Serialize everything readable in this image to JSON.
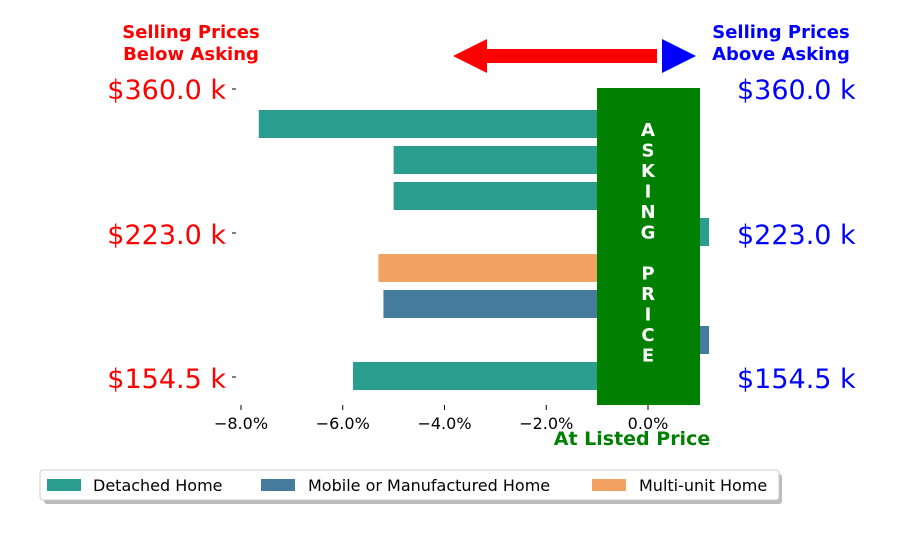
{
  "header": {
    "left_label_line1": "Selling Prices",
    "left_label_line2": "Below Asking",
    "right_label_line1": "Selling Prices",
    "right_label_line2": "Above Asking"
  },
  "asking_band": {
    "letters": [
      "A",
      "S",
      "K",
      "I",
      "N",
      "G",
      "",
      "P",
      "R",
      "I",
      "C",
      "E"
    ],
    "color": "#008000"
  },
  "price_labels": [
    "$360.0 k",
    "$223.0 k",
    "$154.5 k"
  ],
  "colors": {
    "left_price": "#ff0000",
    "right_price": "#0000ff",
    "left_arrow": "#ff0000",
    "right_arrow": "#0000ff",
    "listed_label": "#008000"
  },
  "chart_data": {
    "type": "bar",
    "orientation": "horizontal",
    "xlabel": "At Listed Price",
    "xlim": [
      -8.2,
      1.2
    ],
    "xticks": [
      -8,
      -6,
      -4,
      -2,
      0
    ],
    "xtick_labels": [
      "−8.0%",
      "−6.0%",
      "−4.0%",
      "−2.0%",
      "0.0%"
    ],
    "bars": [
      {
        "series": "Detached Home",
        "value": -7.65
      },
      {
        "series": "Detached Home",
        "value": -5.0
      },
      {
        "series": "Detached Home",
        "value": -5.0
      },
      {
        "series": "Detached Home",
        "value": 1.2
      },
      {
        "series": "Multi-unit Home",
        "value": -5.3
      },
      {
        "series": "Mobile or Manufactured Home",
        "value": -5.2
      },
      {
        "series": "Mobile or Manufactured Home",
        "value": 1.2
      },
      {
        "series": "Detached Home",
        "value": -5.8
      }
    ],
    "series": [
      {
        "name": "Detached Home",
        "color": "#2a9d8f"
      },
      {
        "name": "Mobile or Manufactured Home",
        "color": "#457b9d"
      },
      {
        "name": "Multi-unit Home",
        "color": "#f4a261"
      }
    ],
    "legend_placement": "bottom",
    "grid": false
  }
}
